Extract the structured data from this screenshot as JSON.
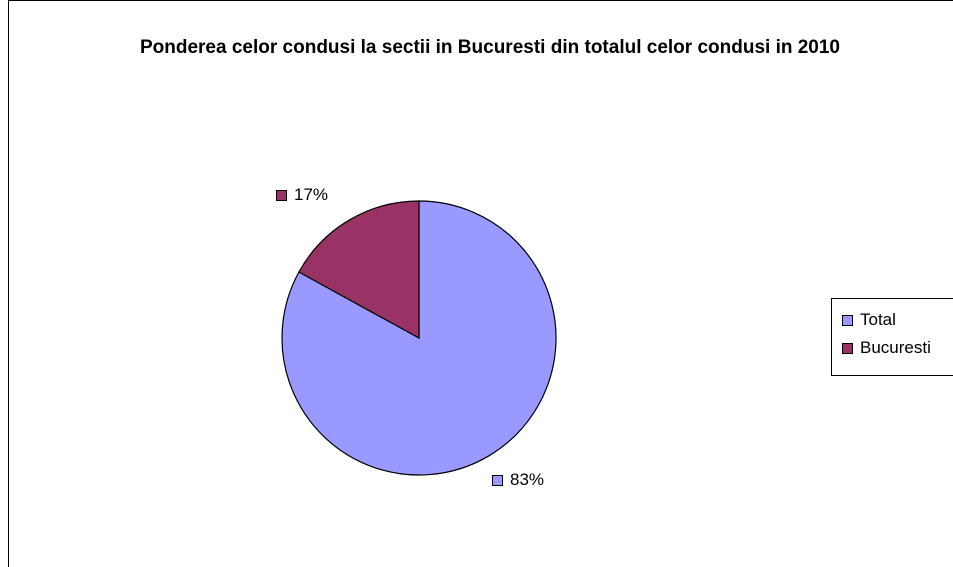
{
  "chart_data": {
    "type": "pie",
    "title": "Ponderea celor condusi la sectii in Bucuresti din totalul celor condusi in 2010",
    "categories": [
      "Total",
      "Bucuresti"
    ],
    "values": [
      83,
      17
    ],
    "data_labels": [
      "83%",
      "17%"
    ],
    "colors": [
      "#9999ff",
      "#993366"
    ],
    "legend_position": "right"
  }
}
